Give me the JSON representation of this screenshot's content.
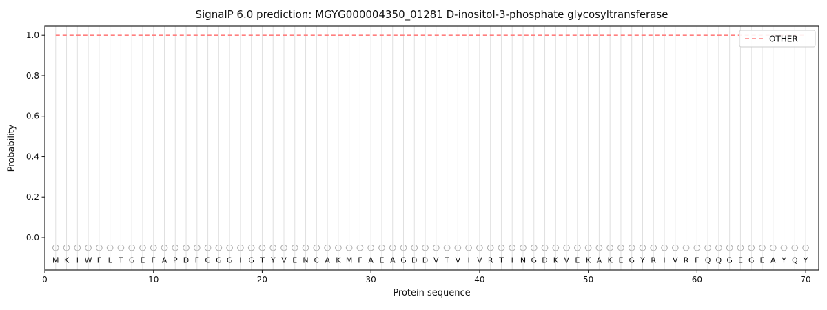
{
  "chart_data": {
    "type": "line",
    "title": "SignalP 6.0 prediction: MGYG000004350_01281 D-inositol-3-phosphate glycosyltransferase",
    "xlabel": "Protein sequence",
    "ylabel": "Probability",
    "xlim": [
      0,
      71.2
    ],
    "ylim": [
      -0.16,
      1.045
    ],
    "xticks": [
      0,
      10,
      20,
      30,
      40,
      50,
      60,
      70
    ],
    "yticks": [
      0.0,
      0.2,
      0.4,
      0.6,
      0.8,
      1.0
    ],
    "grid": "vertical-per-residue",
    "sequence": "MKIWFLTGEFAPDFGGGIGTYVENCAKMFAEAGDDVTVIVRTINGDKVEKAKEGYRIVRFQQGEGEAYQY",
    "series": [
      {
        "name": "OTHER",
        "style": "dashed",
        "color": "#ff7f7f",
        "x_start": 1,
        "values": [
          1.0,
          1.0,
          1.0,
          1.0,
          1.0,
          1.0,
          1.0,
          1.0,
          1.0,
          1.0,
          1.0,
          1.0,
          1.0,
          1.0,
          1.0,
          1.0,
          1.0,
          1.0,
          1.0,
          1.0,
          1.0,
          1.0,
          1.0,
          1.0,
          1.0,
          1.0,
          1.0,
          1.0,
          1.0,
          1.0,
          1.0,
          1.0,
          1.0,
          1.0,
          1.0,
          1.0,
          1.0,
          1.0,
          1.0,
          1.0,
          1.0,
          1.0,
          1.0,
          1.0,
          1.0,
          1.0,
          1.0,
          1.0,
          1.0,
          1.0,
          1.0,
          1.0,
          1.0,
          1.0,
          1.0,
          1.0,
          1.0,
          1.0,
          1.0,
          1.0,
          1.0,
          1.0,
          1.0,
          1.0,
          1.0,
          1.0,
          1.0,
          1.0,
          1.0,
          1.0
        ]
      }
    ],
    "residue_marker": {
      "shape": "open-circle",
      "y": -0.05
    },
    "legend": {
      "position": "upper right",
      "entries": [
        "OTHER"
      ]
    }
  },
  "colors": {
    "background": "#ffffff",
    "grid": "#e0e0e0",
    "spine": "#222222",
    "series": "#ff7f7f",
    "marker": "#b0b0b0",
    "text": "#111111",
    "legend_border": "#cccccc"
  }
}
